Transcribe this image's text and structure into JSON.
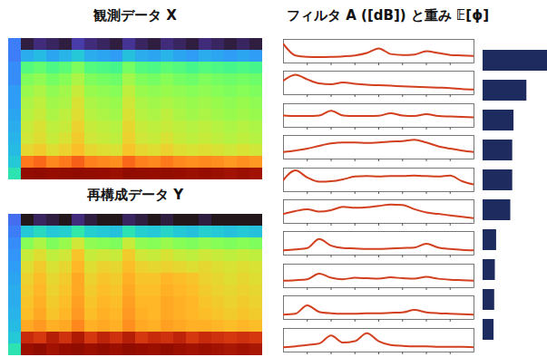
{
  "chart_data": [
    {
      "type": "heatmap",
      "title": "観測データ X",
      "tick_labels": false,
      "cells": [
        [
          0.2,
          0.08,
          0.1,
          0.09,
          0.08,
          0.12,
          0.1,
          0.09,
          0.08,
          0.11,
          0.09,
          0.08,
          0.1,
          0.09,
          0.08,
          0.1,
          0.09,
          0.08,
          0.09,
          0.08
        ],
        [
          0.2,
          0.26,
          0.28,
          0.25,
          0.27,
          0.3,
          0.26,
          0.25,
          0.24,
          0.29,
          0.26,
          0.25,
          0.27,
          0.25,
          0.24,
          0.26,
          0.25,
          0.24,
          0.25,
          0.24
        ],
        [
          0.22,
          0.42,
          0.44,
          0.41,
          0.43,
          0.47,
          0.42,
          0.41,
          0.4,
          0.46,
          0.42,
          0.41,
          0.43,
          0.42,
          0.4,
          0.42,
          0.41,
          0.4,
          0.41,
          0.4
        ],
        [
          0.22,
          0.47,
          0.49,
          0.46,
          0.48,
          0.52,
          0.47,
          0.46,
          0.45,
          0.51,
          0.47,
          0.46,
          0.48,
          0.46,
          0.45,
          0.47,
          0.46,
          0.45,
          0.46,
          0.45
        ],
        [
          0.24,
          0.5,
          0.52,
          0.49,
          0.51,
          0.55,
          0.5,
          0.49,
          0.48,
          0.54,
          0.5,
          0.49,
          0.5,
          0.49,
          0.48,
          0.49,
          0.48,
          0.47,
          0.48,
          0.47
        ],
        [
          0.24,
          0.52,
          0.54,
          0.51,
          0.52,
          0.57,
          0.52,
          0.51,
          0.5,
          0.56,
          0.52,
          0.51,
          0.52,
          0.51,
          0.5,
          0.51,
          0.5,
          0.49,
          0.5,
          0.49
        ],
        [
          0.25,
          0.53,
          0.55,
          0.52,
          0.54,
          0.58,
          0.53,
          0.52,
          0.51,
          0.57,
          0.53,
          0.52,
          0.54,
          0.52,
          0.51,
          0.52,
          0.51,
          0.5,
          0.51,
          0.5
        ],
        [
          0.26,
          0.55,
          0.57,
          0.54,
          0.55,
          0.6,
          0.55,
          0.54,
          0.53,
          0.59,
          0.55,
          0.54,
          0.55,
          0.54,
          0.53,
          0.54,
          0.53,
          0.52,
          0.53,
          0.52
        ],
        [
          0.27,
          0.56,
          0.58,
          0.55,
          0.57,
          0.61,
          0.56,
          0.55,
          0.54,
          0.6,
          0.56,
          0.55,
          0.57,
          0.55,
          0.54,
          0.55,
          0.54,
          0.53,
          0.54,
          0.53
        ],
        [
          0.28,
          0.59,
          0.61,
          0.58,
          0.6,
          0.63,
          0.59,
          0.58,
          0.57,
          0.62,
          0.59,
          0.58,
          0.6,
          0.58,
          0.57,
          0.58,
          0.57,
          0.56,
          0.57,
          0.56
        ],
        [
          0.3,
          0.72,
          0.74,
          0.7,
          0.72,
          0.75,
          0.71,
          0.7,
          0.69,
          0.74,
          0.71,
          0.7,
          0.72,
          0.7,
          0.69,
          0.7,
          0.69,
          0.68,
          0.69,
          0.68
        ],
        [
          0.35,
          0.9,
          0.92,
          0.89,
          0.9,
          0.92,
          0.9,
          0.89,
          0.88,
          0.92,
          0.9,
          0.89,
          0.9,
          0.89,
          0.88,
          0.89,
          0.88,
          0.87,
          0.88,
          0.87
        ]
      ]
    },
    {
      "type": "heatmap",
      "title": "再構成データ Y",
      "tick_labels": false,
      "cells": [
        [
          0.18,
          0.07,
          0.09,
          0.08,
          0.07,
          0.1,
          0.08,
          0.07,
          0.07,
          0.09,
          0.08,
          0.07,
          0.08,
          0.07,
          0.07,
          0.08,
          0.07,
          0.07,
          0.07,
          0.07
        ],
        [
          0.2,
          0.3,
          0.33,
          0.3,
          0.31,
          0.36,
          0.31,
          0.3,
          0.29,
          0.35,
          0.31,
          0.3,
          0.32,
          0.3,
          0.29,
          0.31,
          0.3,
          0.29,
          0.3,
          0.29
        ],
        [
          0.22,
          0.48,
          0.52,
          0.47,
          0.5,
          0.56,
          0.49,
          0.48,
          0.47,
          0.55,
          0.49,
          0.48,
          0.5,
          0.48,
          0.47,
          0.49,
          0.48,
          0.47,
          0.48,
          0.47
        ],
        [
          0.23,
          0.55,
          0.58,
          0.54,
          0.56,
          0.62,
          0.55,
          0.56,
          0.55,
          0.61,
          0.56,
          0.55,
          0.57,
          0.55,
          0.54,
          0.56,
          0.55,
          0.54,
          0.55,
          0.54
        ],
        [
          0.24,
          0.58,
          0.61,
          0.57,
          0.59,
          0.64,
          0.58,
          0.6,
          0.59,
          0.63,
          0.6,
          0.59,
          0.6,
          0.59,
          0.58,
          0.59,
          0.58,
          0.57,
          0.58,
          0.57
        ],
        [
          0.25,
          0.6,
          0.63,
          0.59,
          0.61,
          0.66,
          0.6,
          0.62,
          0.61,
          0.65,
          0.62,
          0.62,
          0.64,
          0.63,
          0.62,
          0.6,
          0.59,
          0.58,
          0.59,
          0.58
        ],
        [
          0.26,
          0.61,
          0.64,
          0.6,
          0.62,
          0.66,
          0.61,
          0.63,
          0.62,
          0.66,
          0.63,
          0.63,
          0.65,
          0.64,
          0.63,
          0.61,
          0.6,
          0.59,
          0.6,
          0.59
        ],
        [
          0.26,
          0.62,
          0.65,
          0.61,
          0.63,
          0.67,
          0.62,
          0.64,
          0.63,
          0.67,
          0.64,
          0.64,
          0.66,
          0.65,
          0.64,
          0.62,
          0.61,
          0.6,
          0.61,
          0.6
        ],
        [
          0.27,
          0.63,
          0.66,
          0.62,
          0.64,
          0.68,
          0.63,
          0.65,
          0.64,
          0.68,
          0.65,
          0.64,
          0.66,
          0.65,
          0.64,
          0.63,
          0.62,
          0.61,
          0.62,
          0.61
        ],
        [
          0.28,
          0.66,
          0.68,
          0.65,
          0.66,
          0.7,
          0.65,
          0.66,
          0.65,
          0.69,
          0.66,
          0.65,
          0.67,
          0.66,
          0.65,
          0.65,
          0.64,
          0.63,
          0.64,
          0.63
        ],
        [
          0.3,
          0.82,
          0.8,
          0.84,
          0.81,
          0.85,
          0.8,
          0.83,
          0.81,
          0.84,
          0.8,
          0.82,
          0.81,
          0.83,
          0.8,
          0.82,
          0.81,
          0.8,
          0.81,
          0.8
        ],
        [
          0.35,
          0.88,
          0.91,
          0.87,
          0.89,
          0.92,
          0.88,
          0.9,
          0.88,
          0.91,
          0.89,
          0.88,
          0.9,
          0.88,
          0.87,
          0.88,
          0.87,
          0.86,
          0.87,
          0.86
        ]
      ]
    },
    {
      "type": "line",
      "title": "フィルタ A ([dB]) と重み 𝔼[ϕ]",
      "tick_labels": false,
      "color": "#d2401f",
      "x": [
        0,
        0.5,
        1,
        1.5,
        2,
        2.5,
        3,
        3.5,
        4,
        4.5,
        5,
        5.5,
        6,
        6.5,
        7,
        7.5,
        8
      ],
      "xlim": [
        0,
        8
      ],
      "xticks": [
        1,
        2,
        3,
        4,
        5,
        6,
        7
      ],
      "ylim": [
        0,
        10
      ],
      "series": [
        {
          "values": [
            8,
            3.2,
            2.6,
            2.5,
            2.6,
            2.8,
            3.2,
            4.2,
            6.2,
            3.8,
            3.4,
            3.6,
            5,
            4.2,
            3.4,
            3.2,
            3
          ]
        },
        {
          "values": [
            6,
            8.5,
            6.5,
            4.8,
            4.4,
            5.2,
            4.6,
            4.2,
            4,
            3.8,
            3.6,
            3.4,
            3.2,
            3,
            2.8,
            2.4,
            2.2
          ]
        },
        {
          "values": [
            5,
            4.8,
            4.8,
            5,
            7,
            5,
            4.8,
            4.8,
            4.9,
            6,
            5,
            4.8,
            5.6,
            4.8,
            4.6,
            4.4,
            4.2
          ]
        },
        {
          "values": [
            3,
            3.6,
            4.4,
            5.6,
            6.6,
            7,
            7,
            6.8,
            7,
            7.4,
            7.6,
            8.2,
            7,
            5.4,
            4.4,
            3.6,
            3
          ]
        },
        {
          "values": [
            5,
            9,
            6,
            4.2,
            4.4,
            5.2,
            6.4,
            6.6,
            6.4,
            6.6,
            6.6,
            6.8,
            6.6,
            6.4,
            6.8,
            4.4,
            3
          ]
        },
        {
          "values": [
            4,
            5.2,
            6,
            5,
            5.6,
            7,
            6.6,
            6.8,
            7.4,
            8,
            7.8,
            6,
            4.6,
            4,
            3.4,
            2.8,
            2.2
          ]
        },
        {
          "values": [
            2,
            2.4,
            3,
            6.8,
            4,
            3,
            2.8,
            2.6,
            2.6,
            2.8,
            3,
            3.2,
            4.8,
            3.2,
            2.6,
            2.2,
            2
          ]
        },
        {
          "values": [
            3,
            3.2,
            3.6,
            6,
            4.2,
            3.6,
            4.2,
            4,
            3.8,
            4.4,
            4,
            3.8,
            4.6,
            3.8,
            3.4,
            3.2,
            3
          ]
        },
        {
          "values": [
            2,
            2.4,
            6,
            3.2,
            2.6,
            2.4,
            2.4,
            2.6,
            2.6,
            2.8,
            3,
            4,
            3,
            2.6,
            2.4,
            2.2,
            2
          ]
        },
        {
          "values": [
            2,
            2.4,
            3,
            3.6,
            7,
            4,
            4.6,
            8,
            4.6,
            3,
            2.6,
            2.4,
            2.4,
            2.2,
            2.2,
            2.2,
            2
          ]
        }
      ]
    },
    {
      "type": "bar",
      "orientation": "horizontal",
      "tick_labels": false,
      "color": "#1d2b5e",
      "categories": [
        null,
        null,
        null,
        null,
        null,
        null,
        null,
        null,
        null,
        null
      ],
      "values": [
        1.0,
        0.68,
        0.48,
        0.46,
        0.46,
        0.43,
        0.21,
        0.19,
        0.18,
        0.17
      ],
      "xlim": [
        0,
        1
      ]
    }
  ]
}
